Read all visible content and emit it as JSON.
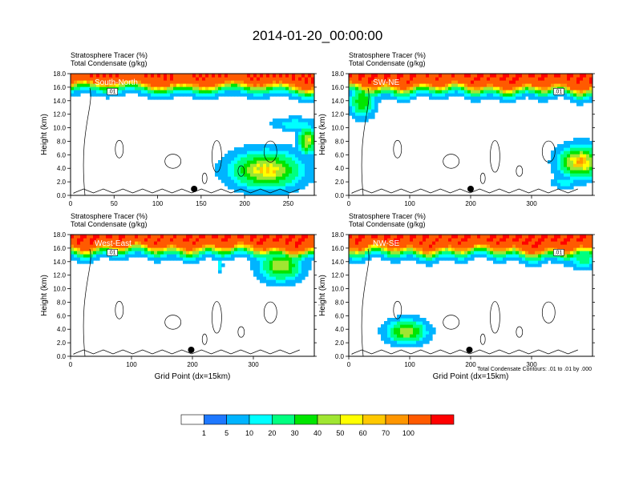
{
  "title": "2014-01-20_00:00:00",
  "colorbar": {
    "labels": [
      "1",
      "5",
      "10",
      "20",
      "30",
      "40",
      "50",
      "60",
      "70",
      "100"
    ],
    "colors": [
      "#ffffff",
      "#1e78ff",
      "#00b4ff",
      "#00ffff",
      "#00ff80",
      "#00e600",
      "#a0e632",
      "#ffff00",
      "#ffc800",
      "#ff9600",
      "#ff5a00",
      "#ff0000"
    ]
  },
  "note": "Total Condensate Contours: .01 to .01 by .000",
  "chart_data": [
    {
      "type": "heatmap",
      "panel_label": "South-North",
      "header1": "Stratosphere Tracer   (%)",
      "header2": "Total Condensate   (g/kg)",
      "ylabel": "Height (km)",
      "xlabel": "",
      "ylim": [
        0,
        18
      ],
      "xlim": [
        0,
        280
      ],
      "xticks": [
        0,
        50,
        100,
        150,
        200,
        250
      ],
      "yticks": [
        "0.0",
        "2.0",
        "4.0",
        "6.0",
        "8.0",
        "10.0",
        "12.0",
        "14.0",
        "16.0",
        "18.0"
      ],
      "tropopause_km": 16.3,
      "marker_x": 142,
      "contour_label": ".01",
      "features": [
        {
          "x": 225,
          "y": 3.8,
          "rx": 35,
          "ry": 2.4,
          "max": 50
        },
        {
          "x": 272,
          "y": 8.2,
          "rx": 9,
          "ry": 1.8,
          "max": 45
        },
        {
          "x": 258,
          "y": 10.6,
          "rx": 22,
          "ry": 0.8,
          "max": 10
        }
      ]
    },
    {
      "type": "heatmap",
      "panel_label": "SW-NE",
      "header1": "Stratosphere Tracer   (%)",
      "header2": "Total Condensate   (g/kg)",
      "ylabel": "Height (km)",
      "xlabel": "",
      "ylim": [
        0,
        18
      ],
      "xlim": [
        0,
        400
      ],
      "xticks": [
        0,
        100,
        200,
        300
      ],
      "yticks": [
        "0.0",
        "2.0",
        "4.0",
        "6.0",
        "8.0",
        "10.0",
        "12.0",
        "14.0",
        "16.0",
        "18.0"
      ],
      "tropopause_km": 16.0,
      "marker_x": 200,
      "contour_label": ".01",
      "features": [
        {
          "x": 380,
          "y": 5.0,
          "rx": 30,
          "ry": 2.0,
          "max": 60
        },
        {
          "x": 355,
          "y": 2.0,
          "rx": 18,
          "ry": 0.8,
          "max": 10
        },
        {
          "x": 22,
          "y": 14.0,
          "rx": 18,
          "ry": 2.0,
          "max": 30
        }
      ]
    },
    {
      "type": "heatmap",
      "panel_label": "West-East",
      "header1": "Stratosphere Tracer   (%)",
      "header2": "Total Condensate   (g/kg)",
      "ylabel": "Height (km)",
      "xlabel": "Grid Point (dx=15km)",
      "ylim": [
        0,
        18
      ],
      "xlim": [
        0,
        400
      ],
      "xticks": [
        0,
        100,
        200,
        300
      ],
      "yticks": [
        "0.0",
        "2.0",
        "4.0",
        "6.0",
        "8.0",
        "10.0",
        "12.0",
        "14.0",
        "16.0",
        "18.0"
      ],
      "tropopause_km": 16.0,
      "marker_x": 198,
      "contour_label": ".01",
      "features": [
        {
          "x": 345,
          "y": 13.5,
          "rx": 30,
          "ry": 2.0,
          "max": 40
        },
        {
          "x": 245,
          "y": 13.5,
          "rx": 4,
          "ry": 1.0,
          "max": 10
        }
      ]
    },
    {
      "type": "heatmap",
      "panel_label": "NW-SE",
      "header1": "Stratosphere Tracer   (%)",
      "header2": "Total Condensate   (g/kg)",
      "ylabel": "Height (km)",
      "xlabel": "Grid Point (dx=15km)",
      "ylim": [
        0,
        18
      ],
      "xlim": [
        0,
        400
      ],
      "xticks": [
        0,
        100,
        200,
        300
      ],
      "yticks": [
        "0.0",
        "2.0",
        "4.0",
        "6.0",
        "8.0",
        "10.0",
        "12.0",
        "14.0",
        "16.0",
        "18.0"
      ],
      "tropopause_km": 15.8,
      "marker_x": 198,
      "contour_label": ".01",
      "features": [
        {
          "x": 95,
          "y": 3.7,
          "rx": 28,
          "ry": 1.5,
          "max": 40
        },
        {
          "x": 385,
          "y": 14.8,
          "rx": 18,
          "ry": 1.5,
          "max": 20
        }
      ]
    }
  ]
}
